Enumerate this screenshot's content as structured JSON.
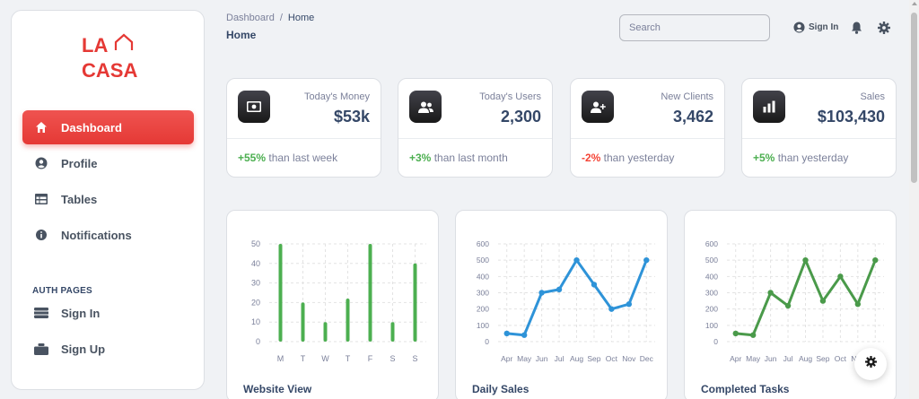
{
  "app": {
    "logo_line1": "LA",
    "logo_line2": "CASA",
    "brand_color": "#e53935"
  },
  "sidebar": {
    "items": [
      {
        "label": "Dashboard",
        "icon": "home-icon",
        "active": true
      },
      {
        "label": "Profile",
        "icon": "user-circle-icon"
      },
      {
        "label": "Tables",
        "icon": "table-icon"
      },
      {
        "label": "Notifications",
        "icon": "info-icon"
      }
    ],
    "auth_title": "AUTH PAGES",
    "auth_items": [
      {
        "label": "Sign In",
        "icon": "sign-in-icon"
      },
      {
        "label": "Sign Up",
        "icon": "sign-up-icon"
      }
    ]
  },
  "header": {
    "breadcrumb": [
      "Dashboard",
      "Home"
    ],
    "breadcrumb_sep": "/",
    "title": "Home",
    "search_placeholder": "Search",
    "signin_label": "Sign In"
  },
  "stats": [
    {
      "label": "Today's Money",
      "value": "$53k",
      "change": "+55%",
      "change_text": " than last week",
      "trend": "positive",
      "icon": "wallet-icon"
    },
    {
      "label": "Today's Users",
      "value": "2,300",
      "change": "+3%",
      "change_text": " than last month",
      "trend": "positive",
      "icon": "users-icon"
    },
    {
      "label": "New Clients",
      "value": "3,462",
      "change": "-2%",
      "change_text": " than yesterday",
      "trend": "negative",
      "icon": "user-plus-icon"
    },
    {
      "label": "Sales",
      "value": "$103,430",
      "change": "+5%",
      "change_text": " than yesterday",
      "trend": "positive",
      "icon": "bar-chart-icon"
    }
  ],
  "chart_data": [
    {
      "type": "bar",
      "title": "Website View",
      "categories": [
        "M",
        "T",
        "W",
        "T",
        "F",
        "S",
        "S"
      ],
      "values": [
        50,
        20,
        10,
        22,
        50,
        10,
        40
      ],
      "yticks": [
        0,
        10,
        20,
        30,
        40,
        50
      ],
      "ylim": [
        0,
        50
      ],
      "color": "#4caf50",
      "grid": true
    },
    {
      "type": "line",
      "title": "Daily Sales",
      "categories": [
        "Apr",
        "May",
        "Jun",
        "Jul",
        "Aug",
        "Sep",
        "Oct",
        "Nov",
        "Dec"
      ],
      "values": [
        50,
        40,
        300,
        320,
        500,
        350,
        200,
        230,
        500
      ],
      "yticks": [
        0,
        100,
        200,
        300,
        400,
        500,
        600
      ],
      "ylim": [
        0,
        600
      ],
      "color": "#2e93d8",
      "grid": true
    },
    {
      "type": "line",
      "title": "Completed Tasks",
      "categories": [
        "Apr",
        "May",
        "Jun",
        "Jul",
        "Aug",
        "Sep",
        "Oct",
        "Nov",
        "Dec"
      ],
      "values": [
        50,
        40,
        300,
        220,
        500,
        250,
        400,
        230,
        500
      ],
      "yticks": [
        0,
        100,
        200,
        300,
        400,
        500,
        600
      ],
      "ylim": [
        0,
        600
      ],
      "color": "#4a9a4a",
      "grid": true
    }
  ]
}
